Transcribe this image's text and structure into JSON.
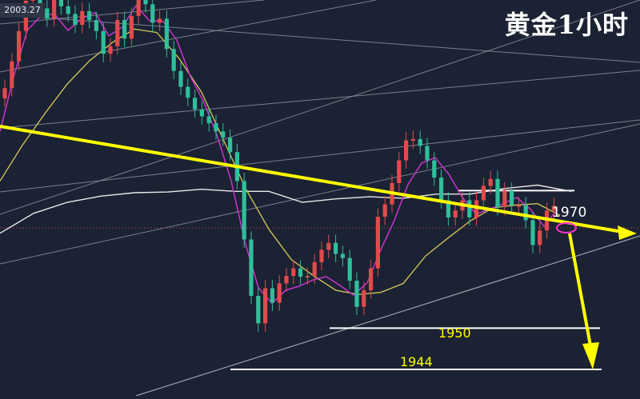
{
  "header": {
    "price_tag": "2003.27",
    "title": "黄金1小时"
  },
  "colors": {
    "background": "#1b2233",
    "bull": "#e14b4b",
    "bear": "#2fbf9a",
    "trend": "#ffff00",
    "ma_fast": "#cc33cc",
    "ma_mid": "#c8c15a",
    "ma_slow": "#e8e8e8",
    "ray": "#8a8f9c",
    "marker": "#ff33cc"
  },
  "chart_data": {
    "type": "candlestick",
    "title": "黄金1小时",
    "ylim": [
      1940,
      2006
    ],
    "levels": [
      {
        "label": "1970",
        "value": 1970
      },
      {
        "label": "1950",
        "value": 1950
      },
      {
        "label": "1944",
        "value": 1944
      }
    ],
    "current_price": 2003.27,
    "close": [
      1984.9,
      1988.8,
      1993.2,
      1997.6,
      1999.8,
      1996.5,
      1995.0,
      1997.8,
      1996.8,
      1995.7,
      1994.1,
      1996.1,
      1994.8,
      1993.2,
      1989.9,
      1991.0,
      1994.8,
      1992.1,
      1995.4,
      1999.3,
      1997.1,
      1994.4,
      1995.0,
      1990.6,
      1987.4,
      1985.1,
      1983.5,
      1981.8,
      1980.8,
      1979.8,
      1978.6,
      1977.7,
      1975.6,
      1971.4,
      1962.9,
      1954.7,
      1950.7,
      1955.8,
      1953.7,
      1956.5,
      1957.6,
      1958.7,
      1957.5,
      1957.6,
      1959.6,
      1961.4,
      1962.4,
      1960.8,
      1960.2,
      1956.9,
      1953.1,
      1955.5,
      1958.7,
      1966.2,
      1968.0,
      1971.1,
      1974.4,
      1977.3,
      1977.5,
      1976.5,
      1974.4,
      1971.9,
      1968.6,
      1966.1,
      1967.1,
      1968.6,
      1966.1,
      1968.6,
      1970.7,
      1971.7,
      1967.6,
      1970.0,
      1967.9,
      1967.9,
      1965.7,
      1962.1,
      1964.2,
      1967.1,
      1967.8
    ],
    "ma_fast": [
      1978.6,
      1986.5,
      1993.3,
      1995.4,
      1995.7,
      1993.3,
      1995.0,
      1995.9,
      1992.5,
      1993.8,
      1996.9,
      1994.7,
      1994.6,
      1991.9,
      1986.6,
      1982.8,
      1977.8,
      1971.4,
      1962.6,
      1955.9,
      1953.6,
      1955.5,
      1956.1,
      1957.0,
      1957.5,
      1956.2,
      1954.8,
      1956.6,
      1961.4,
      1965.7,
      1970.9,
      1974.0,
      1974.8,
      1972.4,
      1969.0,
      1966.6,
      1967.3,
      1968.1,
      1969.0,
      1967.3,
      1964.8,
      1967.3
    ],
    "ma_mid": [
      1971.4,
      1976.6,
      1981.2,
      1985.5,
      1988.9,
      1991.5,
      1993.5,
      1993.0,
      1989.2,
      1984.3,
      1977.2,
      1970.1,
      1964.4,
      1960.0,
      1957.6,
      1955.5,
      1954.9,
      1955.2,
      1956.5,
      1960.5,
      1963.1,
      1965.6,
      1967.5,
      1967.9,
      1968.1,
      1966.4
    ],
    "ma_slow": [
      1963.8,
      1966.7,
      1968.3,
      1969.2,
      1969.7,
      1969.8,
      1970.2,
      1969.9,
      1969.9,
      1968.3,
      1968.8,
      1969.1,
      1968.9,
      1969.5,
      1969.5,
      1970.3,
      1970.8,
      1969.9
    ]
  }
}
